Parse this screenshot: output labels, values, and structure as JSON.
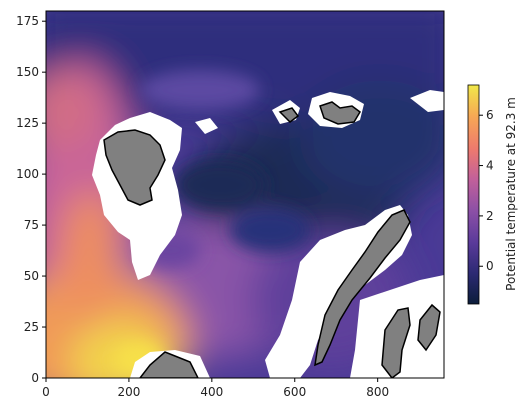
{
  "chart_data": {
    "type": "heatmap",
    "title": "",
    "xlabel": "",
    "ylabel": "",
    "xlim": [
      0,
      960
    ],
    "ylim": [
      0,
      180
    ],
    "x_ticks": [
      0,
      200,
      400,
      600,
      800
    ],
    "y_ticks": [
      0,
      25,
      50,
      75,
      100,
      125,
      150,
      175
    ],
    "colormap": "thermal",
    "colorbar": {
      "label": "Potential temperature at 92.3 m",
      "range": [
        -1.5,
        7.2
      ],
      "ticks": [
        0,
        2,
        4,
        6
      ],
      "colors": [
        "#0b1d3a",
        "#2c2a73",
        "#5a3a9a",
        "#8a4fa6",
        "#c2609a",
        "#ee7a6d",
        "#f7a954",
        "#f0e84a"
      ]
    },
    "mask_colors": {
      "land": "#808080",
      "ice_or_missing": "#ffffff",
      "coastline": "#000000"
    },
    "approx_fields": {
      "warm_region": "southwest corner up to ~7 (yellow)",
      "mid_region": "west/central ~2-4 (orange/pink)",
      "cold_region": "north and central-east ~-1 to 0 (dark navy/indigo)"
    }
  }
}
